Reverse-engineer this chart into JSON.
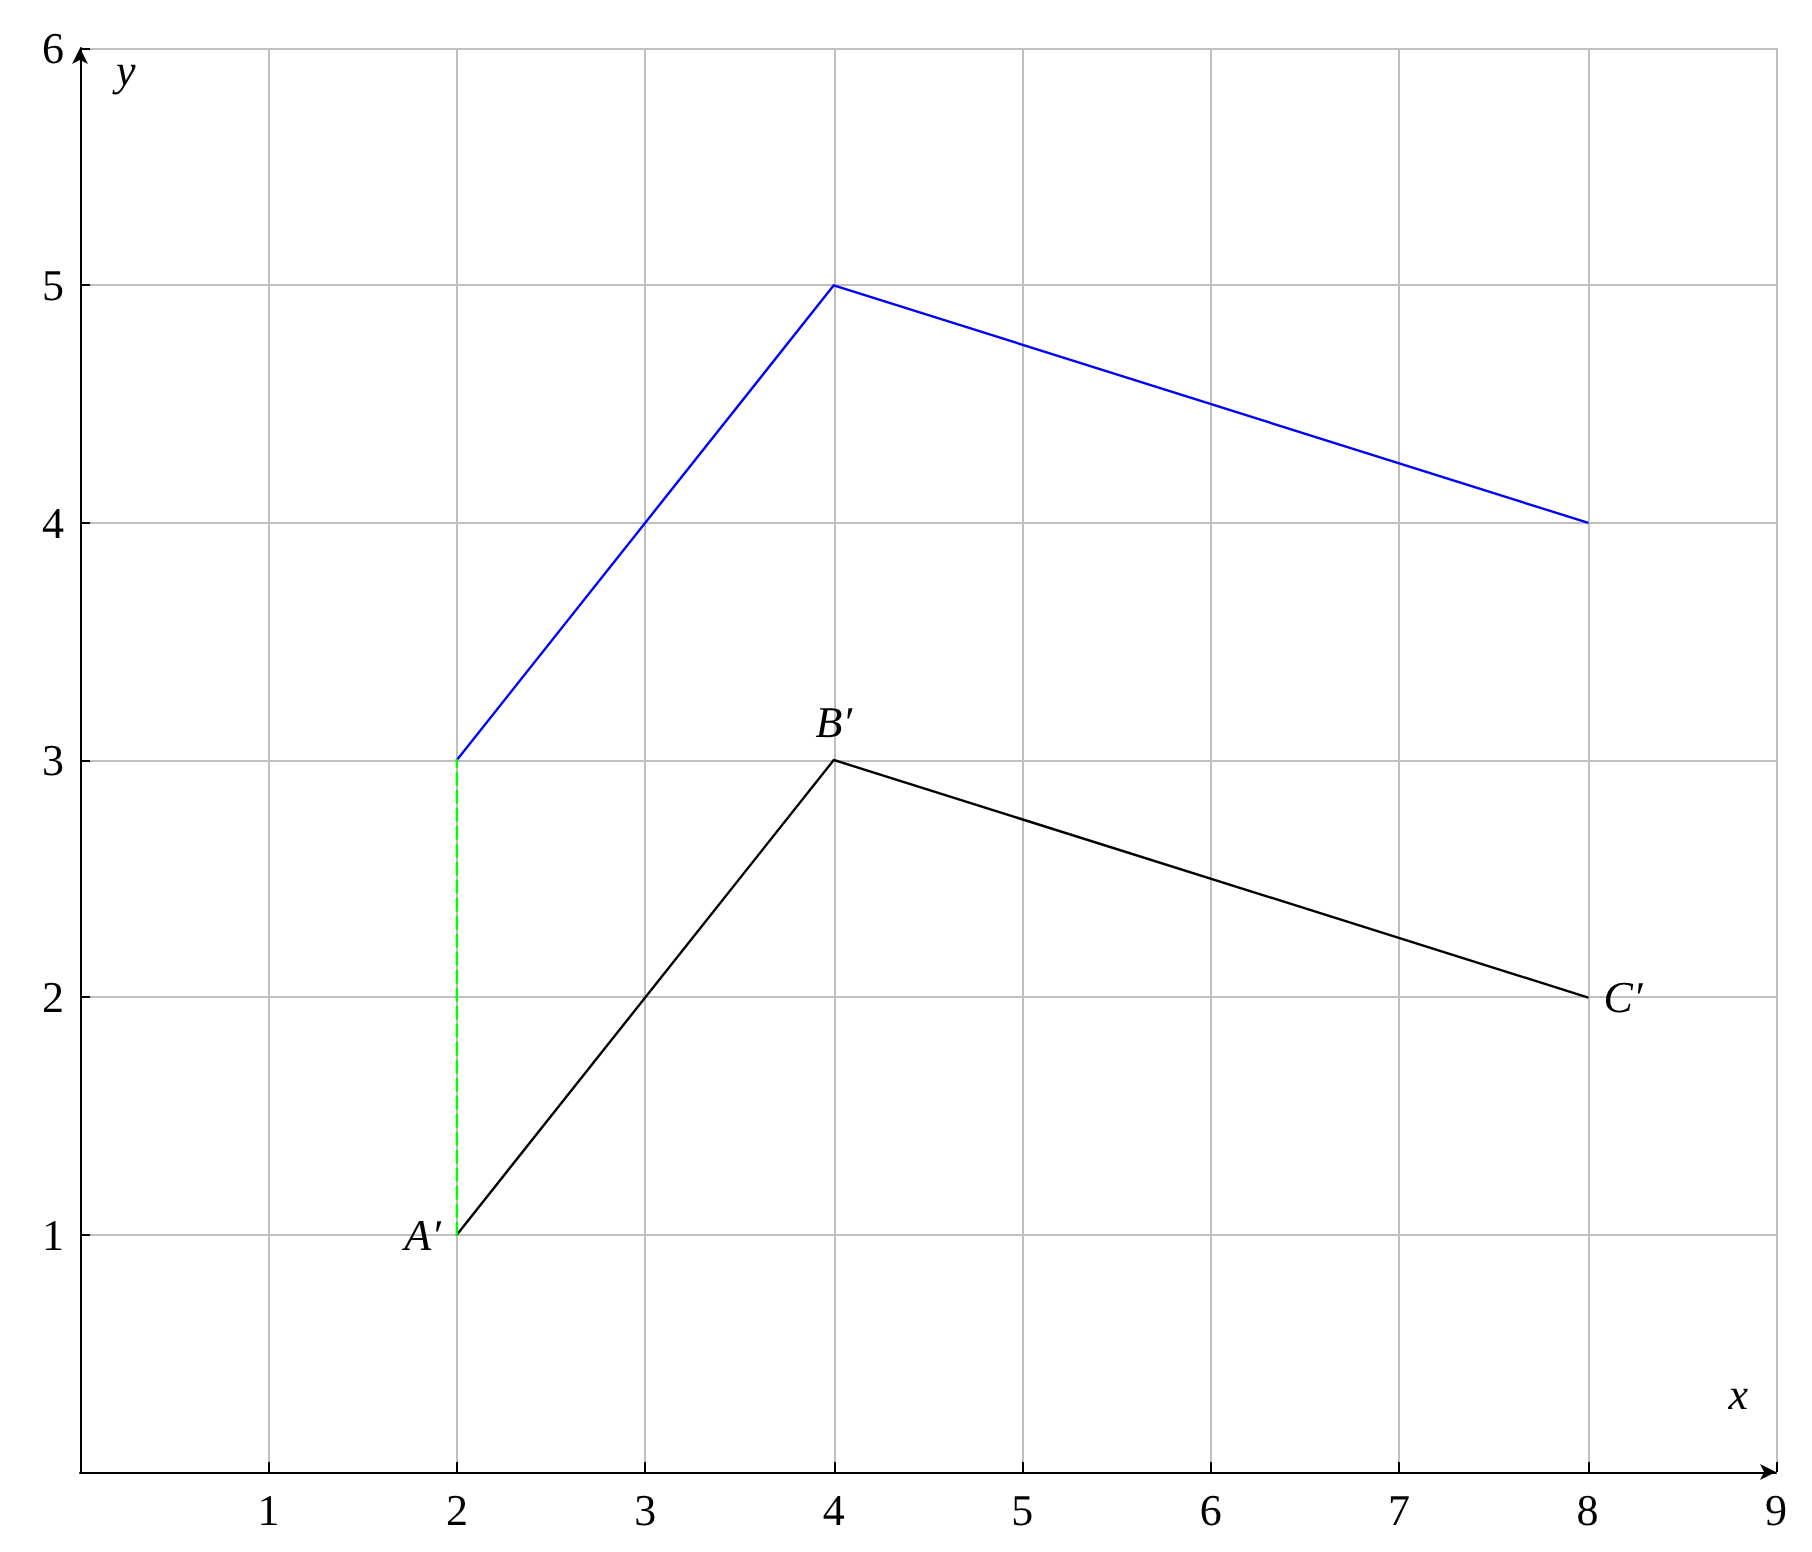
{
  "chart_data": {
    "type": "line",
    "xlabel": "x",
    "ylabel": "y",
    "series": [
      {
        "color": "#000000",
        "x": [
          2,
          4,
          8
        ],
        "values": [
          1,
          3,
          2
        ],
        "line_style": "solid"
      },
      {
        "color": "#0000ff",
        "x": [
          2,
          4,
          8
        ],
        "values": [
          3,
          5,
          4
        ],
        "line_style": "solid"
      },
      {
        "color": "#00ff00",
        "x": [
          2,
          2
        ],
        "values": [
          1,
          3
        ],
        "line_style": "dashed"
      }
    ],
    "annotations": [
      {
        "text": "A′",
        "x": 2,
        "y": 1
      },
      {
        "text": "B′",
        "x": 4,
        "y": 3
      },
      {
        "text": "C′",
        "x": 8,
        "y": 2
      }
    ],
    "xlim": [
      0,
      9
    ],
    "ylim": [
      0,
      6
    ],
    "xticks": [
      1,
      2,
      3,
      4,
      5,
      6,
      7,
      8,
      9
    ],
    "yticks": [
      1,
      2,
      3,
      4,
      5,
      6
    ],
    "grid": true,
    "marker": "none"
  }
}
